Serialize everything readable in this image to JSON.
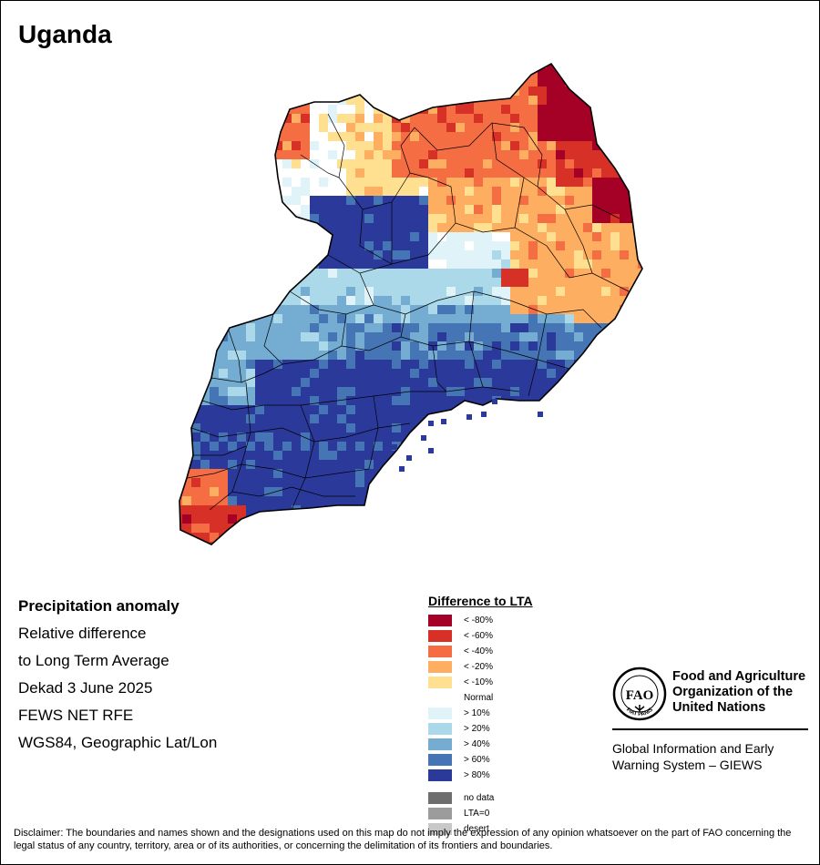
{
  "title": "Uganda",
  "info": {
    "heading": "Precipitation anomaly",
    "lines": [
      "Relative difference",
      "to Long Term Average",
      "Dekad 3 June 2025",
      "FEWS NET RFE",
      "WGS84, Geographic Lat/Lon"
    ]
  },
  "legend": {
    "title": "Difference to LTA",
    "classes": [
      {
        "label": "< -80%",
        "color": "#a50026"
      },
      {
        "label": "< -60%",
        "color": "#d73027"
      },
      {
        "label": "< -40%",
        "color": "#f46d43"
      },
      {
        "label": "< -20%",
        "color": "#fdae61"
      },
      {
        "label": "< -10%",
        "color": "#fee090"
      },
      {
        "label": "Normal",
        "color": "#ffffff"
      },
      {
        "label": "> 10%",
        "color": "#e0f3f8"
      },
      {
        "label": "> 20%",
        "color": "#abd9e9"
      },
      {
        "label": "> 40%",
        "color": "#74add1"
      },
      {
        "label": "> 60%",
        "color": "#4575b4"
      },
      {
        "label": "> 80%",
        "color": "#2b3a9a"
      }
    ],
    "extra": [
      {
        "label": "no data",
        "color": "#6e6e6e"
      },
      {
        "label": "LTA=0",
        "color": "#9c9c9c"
      },
      {
        "label": "desert",
        "color": "#c8c8c8"
      }
    ]
  },
  "logo": {
    "org_lines": [
      "Food and Agriculture",
      "Organization of the",
      "United Nations"
    ],
    "emblem_letters": "FAO",
    "emblem_motto": "FIAT PANIS",
    "system_lines": [
      "Global Information and Early",
      "Warning System – GIEWS"
    ]
  },
  "disclaimer": "Disclaimer: The boundaries and names shown and the designations used on this map do not imply the expression of any opinion whatsoever on the part of FAO concerning the legal status of any country, territory, area or of its authorities, or concerning the delimitation of its frontiers and boundaries."
}
